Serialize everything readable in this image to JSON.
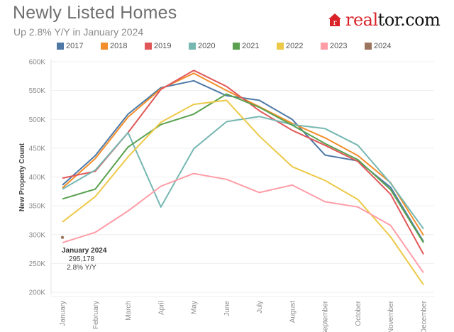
{
  "header": {
    "title": "Newly Listed Homes",
    "subtitle": "Up 2.8% Y/Y in January 2024"
  },
  "logo": {
    "part1": "real",
    "part2": "tor.com",
    "brand_color": "#d92228",
    "icon": "house-icon"
  },
  "chart_data": {
    "type": "line",
    "title": "Newly Listed Homes",
    "subtitle": "Up 2.8% Y/Y in January 2024",
    "xlabel": "",
    "ylabel": "New Property Count",
    "ylim": [
      200000,
      600000
    ],
    "yticks": [
      200000,
      250000,
      300000,
      350000,
      400000,
      450000,
      500000,
      550000,
      600000
    ],
    "ytick_labels": [
      "200K",
      "250K",
      "300K",
      "350K",
      "400K",
      "450K",
      "500K",
      "550K",
      "600K"
    ],
    "grid": true,
    "legend_position": "top",
    "categories": [
      "January",
      "February",
      "March",
      "April",
      "May",
      "June",
      "July",
      "August",
      "September",
      "October",
      "November",
      "December"
    ],
    "series": [
      {
        "name": "2017",
        "color": "#4e79a7",
        "values": [
          386000,
          437000,
          509000,
          555000,
          567000,
          541000,
          533000,
          500000,
          438000,
          428000,
          382000,
          288000
        ]
      },
      {
        "name": "2018",
        "color": "#f28e2b",
        "values": [
          381000,
          432000,
          504000,
          553000,
          580000,
          550000,
          522000,
          493000,
          468000,
          437000,
          390000,
          299000
        ]
      },
      {
        "name": "2019",
        "color": "#e15759",
        "values": [
          398000,
          410000,
          477000,
          552000,
          585000,
          557000,
          515000,
          481000,
          455000,
          427000,
          370000,
          266000
        ]
      },
      {
        "name": "2020",
        "color": "#76b7b2",
        "values": [
          379000,
          412000,
          477000,
          348000,
          449000,
          496000,
          505000,
          491000,
          484000,
          455000,
          389000,
          310000
        ]
      },
      {
        "name": "2021",
        "color": "#59a14f",
        "values": [
          362000,
          379000,
          452000,
          491000,
          509000,
          544000,
          521000,
          490000,
          458000,
          430000,
          378000,
          286000
        ]
      },
      {
        "name": "2022",
        "color": "#edc948",
        "values": [
          322000,
          366000,
          435000,
          495000,
          526000,
          533000,
          471000,
          418000,
          394000,
          361000,
          296000,
          213000
        ]
      },
      {
        "name": "2023",
        "color": "#ff9da7",
        "values": [
          286000,
          304000,
          341000,
          384000,
          406000,
          396000,
          373000,
          386000,
          357000,
          348000,
          316000,
          234000
        ]
      },
      {
        "name": "2024",
        "color": "#9c755f",
        "values": [
          295178
        ]
      }
    ],
    "annotations": [
      {
        "title": "January 2024",
        "value": "295,178",
        "change": "2.8% Y/Y",
        "series": "2024",
        "category": "January"
      }
    ]
  }
}
